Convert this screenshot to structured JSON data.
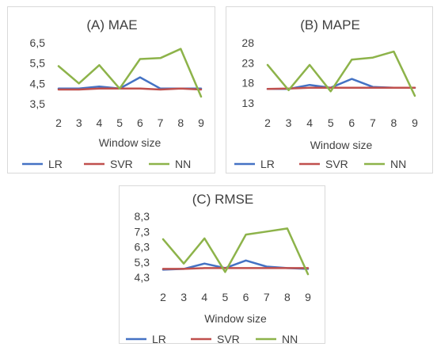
{
  "colors": {
    "LR": "#4472c4",
    "SVR": "#c0504d",
    "NN": "#8db34a",
    "text": "#404040",
    "axis": "#d9d9d9"
  },
  "chart_data": [
    {
      "type": "line",
      "title": "(A) MAE",
      "xlabel": "Window size",
      "ylabel": "",
      "categories": [
        "2",
        "3",
        "4",
        "5",
        "6",
        "7",
        "8",
        "9"
      ],
      "ylim": [
        3.5,
        6.5
      ],
      "yticks": [
        "6,5",
        "5,5",
        "4,5",
        "3,5"
      ],
      "ytick_values": [
        6.5,
        5.5,
        4.5,
        3.5
      ],
      "grid": false,
      "legend": "bottom",
      "series": [
        {
          "name": "LR",
          "values": [
            4.25,
            4.25,
            4.35,
            4.25,
            4.8,
            4.25,
            4.25,
            4.25
          ]
        },
        {
          "name": "SVR",
          "values": [
            4.2,
            4.2,
            4.25,
            4.25,
            4.25,
            4.2,
            4.25,
            4.2
          ]
        },
        {
          "name": "NN",
          "values": [
            5.35,
            4.5,
            5.4,
            4.25,
            5.7,
            5.75,
            6.2,
            3.85
          ]
        }
      ]
    },
    {
      "type": "line",
      "title": "(B) MAPE",
      "xlabel": "Window size",
      "ylabel": "",
      "categories": [
        "2",
        "3",
        "4",
        "5",
        "6",
        "7",
        "8",
        "9"
      ],
      "ylim": [
        13,
        28
      ],
      "yticks": [
        "28",
        "23",
        "18",
        "13"
      ],
      "ytick_values": [
        28,
        23,
        18,
        13
      ],
      "grid": false,
      "legend": "bottom",
      "series": [
        {
          "name": "LR",
          "values": [
            16.5,
            16.5,
            17.5,
            16.8,
            19.0,
            17.0,
            16.8,
            16.8
          ]
        },
        {
          "name": "SVR",
          "values": [
            16.5,
            16.6,
            16.8,
            16.8,
            16.8,
            16.8,
            16.8,
            16.8
          ]
        },
        {
          "name": "NN",
          "values": [
            22.5,
            16.2,
            22.5,
            15.9,
            23.8,
            24.3,
            25.8,
            14.8
          ]
        }
      ]
    },
    {
      "type": "line",
      "title": "(C) RMSE",
      "xlabel": "Window size",
      "ylabel": "",
      "categories": [
        "2",
        "3",
        "4",
        "5",
        "6",
        "7",
        "8",
        "9"
      ],
      "ylim": [
        4.3,
        8.3
      ],
      "yticks": [
        "8,3",
        "7,3",
        "6,3",
        "5,3",
        "4,3"
      ],
      "ytick_values": [
        8.3,
        7.3,
        6.3,
        5.3,
        4.3
      ],
      "grid": false,
      "legend": "bottom",
      "series": [
        {
          "name": "LR",
          "values": [
            4.8,
            4.85,
            5.2,
            4.9,
            5.4,
            5.0,
            4.9,
            4.85
          ]
        },
        {
          "name": "SVR",
          "values": [
            4.85,
            4.85,
            4.9,
            4.9,
            4.9,
            4.9,
            4.9,
            4.9
          ]
        },
        {
          "name": "NN",
          "values": [
            6.8,
            5.2,
            6.85,
            4.65,
            7.1,
            7.3,
            7.5,
            4.5
          ]
        }
      ]
    }
  ]
}
